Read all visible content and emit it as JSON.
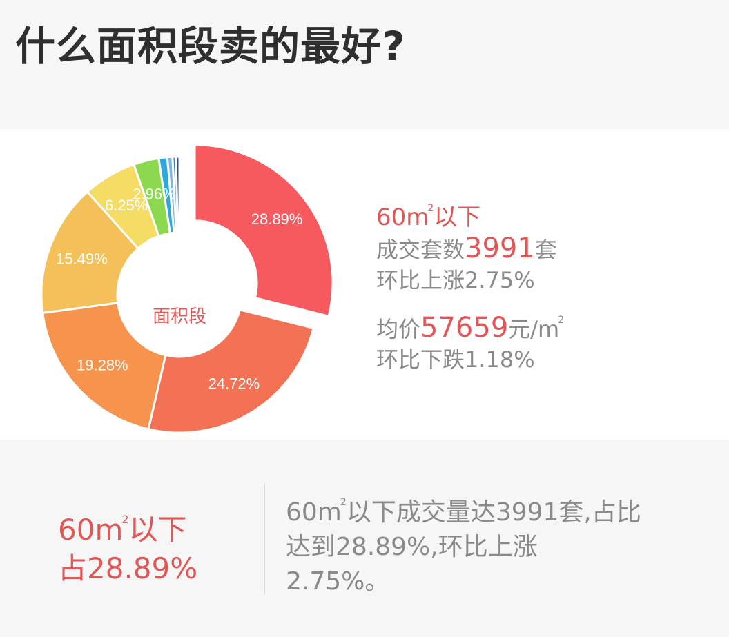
{
  "title": "什么面积段卖的最好?",
  "chart_data": {
    "type": "pie",
    "center_label": "面积段",
    "slices": [
      {
        "value": 28.89,
        "label": "28.89%",
        "color": "#f65a5f",
        "exploded": true
      },
      {
        "value": 24.72,
        "label": "24.72%",
        "color": "#f37256"
      },
      {
        "value": 19.28,
        "label": "19.28%",
        "color": "#f6944e"
      },
      {
        "value": 15.49,
        "label": "15.49%",
        "color": "#f4c05a"
      },
      {
        "value": 6.25,
        "label": "6.25%",
        "color": "#f5dc64"
      },
      {
        "value": 2.96,
        "label": "2.96%",
        "color": "#8cd84e"
      },
      {
        "value": 1.0,
        "label": "",
        "color": "#2ea7d9"
      },
      {
        "value": 0.6,
        "label": "",
        "color": "#7ab8e0"
      },
      {
        "value": 0.4,
        "label": "",
        "color": "#3f7fc9"
      },
      {
        "value": 0.41,
        "label": "",
        "color": "#2a4fa0"
      }
    ]
  },
  "info": {
    "title_prefix": "60m",
    "sq": "2",
    "title_suffix": "以下",
    "deals_label": "成交套数",
    "deals_value": "3991",
    "deals_unit": "套",
    "deals_change": "环比上涨2.75%",
    "price_label": "均价",
    "price_value": "57659",
    "price_unit": "元/m",
    "price_change": "环比下跌1.18%"
  },
  "summary": {
    "left_line1_prefix": "60m",
    "left_line1_suffix": "以下",
    "left_line2": "占28.89%",
    "text_prefix": "60m",
    "text_line1_rest": "以下成交量达3991套,占比",
    "text_line2": "达到28.89%,环比上涨",
    "text_line3": "2.75%。"
  }
}
